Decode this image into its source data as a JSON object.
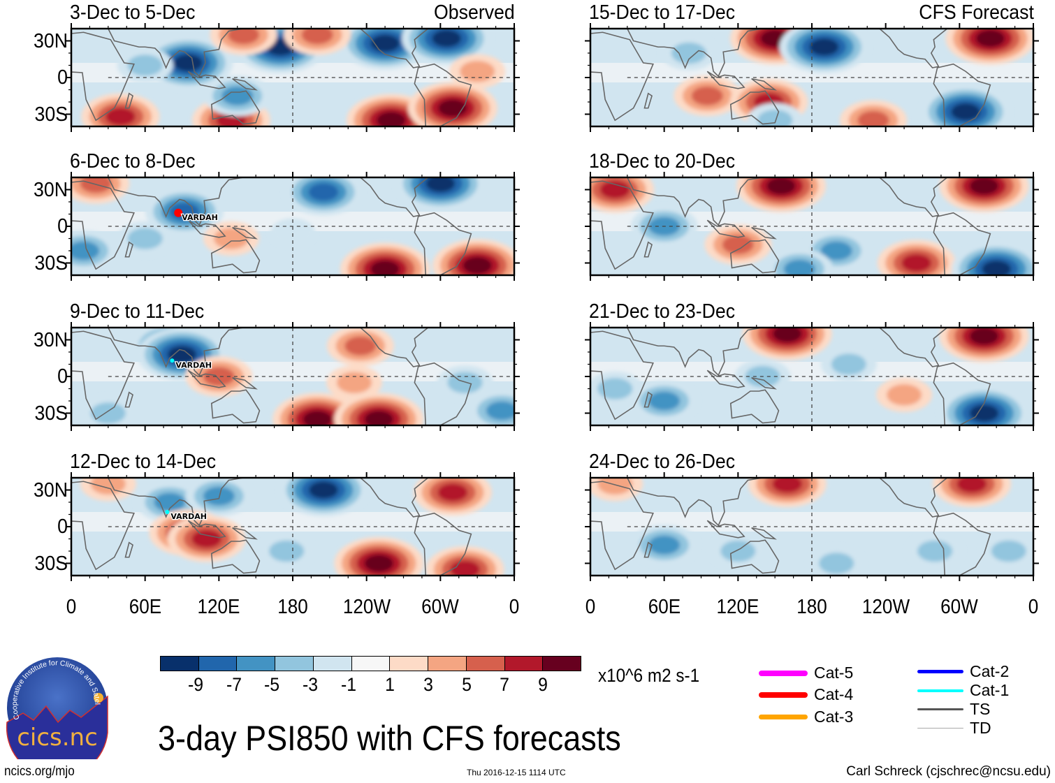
{
  "title": "3-day PSI850 with CFS forecasts",
  "labels": {
    "observed": "Observed",
    "forecast": "CFS Forecast",
    "units": "x10^6 m2 s-1",
    "site_url": "ncics.org/mjo",
    "timestamp": "Thu 2016-12-15 1114 UTC",
    "author": "Carl Schreck (cjschrec@ncsu.edu)",
    "logo_text": "cics.nc",
    "logo_ring_text": "Cooperative Institute for Climate and Satellites"
  },
  "latitude_ticks": [
    "30N",
    "0",
    "30S"
  ],
  "longitude_ticks": [
    "0",
    "60E",
    "120E",
    "180",
    "120W",
    "60W",
    "0"
  ],
  "colorbar": {
    "colors": [
      "#08306b",
      "#2166ac",
      "#4393c3",
      "#92c5de",
      "#d1e5f0",
      "#f7f7f7",
      "#fddbc7",
      "#f4a582",
      "#d6604d",
      "#b2182b",
      "#67001f"
    ],
    "tick_labels": [
      "-9",
      "-7",
      "-5",
      "-3",
      "-1",
      "1",
      "3",
      "5",
      "7",
      "9"
    ]
  },
  "storm_legend": [
    {
      "label": "Cat-5",
      "color": "#ff00ff"
    },
    {
      "label": "Cat-4",
      "color": "#ff0000"
    },
    {
      "label": "Cat-3",
      "color": "#ffa500"
    },
    {
      "label": "Cat-2",
      "color": "#0000ff"
    },
    {
      "label": "Cat-1",
      "color": "#00ffff"
    },
    {
      "label": "TS",
      "color": "#555555"
    },
    {
      "label": "TD",
      "color": "#aaaaaa"
    }
  ],
  "panels": [
    {
      "period": "3-Dec to 5-Dec",
      "type": "Observed",
      "storm": null
    },
    {
      "period": "6-Dec to 8-Dec",
      "type": "Observed",
      "storm": {
        "name": "VARDAH",
        "category": "Cat-4"
      }
    },
    {
      "period": "9-Dec to 11-Dec",
      "type": "Observed",
      "storm": {
        "name": "VARDAH",
        "category": "Cat-1"
      }
    },
    {
      "period": "12-Dec to 14-Dec",
      "type": "Observed",
      "storm": {
        "name": "VARDAH",
        "category": "Cat-1"
      }
    },
    {
      "period": "15-Dec to 17-Dec",
      "type": "CFS Forecast",
      "storm": null
    },
    {
      "period": "18-Dec to 20-Dec",
      "type": "CFS Forecast",
      "storm": null
    },
    {
      "period": "21-Dec to 23-Dec",
      "type": "CFS Forecast",
      "storm": null
    },
    {
      "period": "24-Dec to 26-Dec",
      "type": "CFS Forecast",
      "storm": null
    }
  ],
  "anomaly_centers": [
    [
      [
        80,
        15,
        -5
      ],
      [
        95,
        12,
        -9
      ],
      [
        170,
        25,
        -9
      ],
      [
        255,
        28,
        -9
      ],
      [
        305,
        32,
        -9
      ],
      [
        140,
        35,
        5
      ],
      [
        200,
        35,
        5
      ],
      [
        40,
        -32,
        7
      ],
      [
        130,
        -35,
        7
      ],
      [
        260,
        -35,
        9
      ],
      [
        310,
        -25,
        9
      ],
      [
        135,
        -15,
        -5
      ],
      [
        60,
        10,
        -3
      ],
      [
        330,
        5,
        3
      ]
    ],
    [
      [
        92,
        12,
        -7
      ],
      [
        205,
        28,
        -7
      ],
      [
        300,
        35,
        -9
      ],
      [
        130,
        -10,
        3
      ],
      [
        255,
        -35,
        9
      ],
      [
        330,
        -32,
        9
      ],
      [
        20,
        35,
        5
      ],
      [
        60,
        -10,
        -3
      ],
      [
        10,
        -20,
        -5
      ],
      [
        180,
        -5,
        -1
      ]
    ],
    [
      [
        80,
        25,
        -7
      ],
      [
        90,
        18,
        -9
      ],
      [
        235,
        25,
        5
      ],
      [
        230,
        -5,
        3
      ],
      [
        120,
        0,
        5
      ],
      [
        200,
        -35,
        9
      ],
      [
        250,
        -35,
        9
      ],
      [
        30,
        -30,
        -3
      ],
      [
        320,
        -5,
        -3
      ],
      [
        350,
        -28,
        -5
      ]
    ],
    [
      [
        80,
        20,
        -5
      ],
      [
        120,
        25,
        -5
      ],
      [
        205,
        30,
        -9
      ],
      [
        310,
        28,
        7
      ],
      [
        95,
        -5,
        7
      ],
      [
        110,
        -10,
        7
      ],
      [
        250,
        -30,
        9
      ],
      [
        320,
        -35,
        7
      ],
      [
        30,
        35,
        3
      ],
      [
        175,
        -20,
        -3
      ]
    ],
    [
      [
        150,
        32,
        9
      ],
      [
        190,
        25,
        -9
      ],
      [
        325,
        32,
        9
      ],
      [
        80,
        20,
        -3
      ],
      [
        95,
        -15,
        5
      ],
      [
        145,
        -20,
        7
      ],
      [
        305,
        -28,
        -9
      ],
      [
        230,
        -35,
        5
      ],
      [
        150,
        -35,
        -3
      ]
    ],
    [
      [
        155,
        33,
        9
      ],
      [
        320,
        33,
        9
      ],
      [
        20,
        30,
        7
      ],
      [
        60,
        0,
        -5
      ],
      [
        120,
        -15,
        5
      ],
      [
        265,
        -30,
        7
      ],
      [
        330,
        -35,
        -9
      ],
      [
        200,
        -20,
        -5
      ],
      [
        170,
        -35,
        -5
      ]
    ],
    [
      [
        160,
        35,
        9
      ],
      [
        320,
        33,
        9
      ],
      [
        210,
        10,
        -3
      ],
      [
        60,
        -20,
        -5
      ],
      [
        140,
        0,
        -3
      ],
      [
        320,
        -30,
        -9
      ],
      [
        255,
        -15,
        3
      ],
      [
        20,
        -10,
        -3
      ]
    ],
    [
      [
        160,
        35,
        7
      ],
      [
        310,
        35,
        7
      ],
      [
        20,
        35,
        3
      ],
      [
        60,
        -15,
        -5
      ],
      [
        120,
        -20,
        -3
      ],
      [
        280,
        -20,
        -3
      ],
      [
        340,
        -20,
        -3
      ],
      [
        200,
        -30,
        -3
      ]
    ]
  ]
}
